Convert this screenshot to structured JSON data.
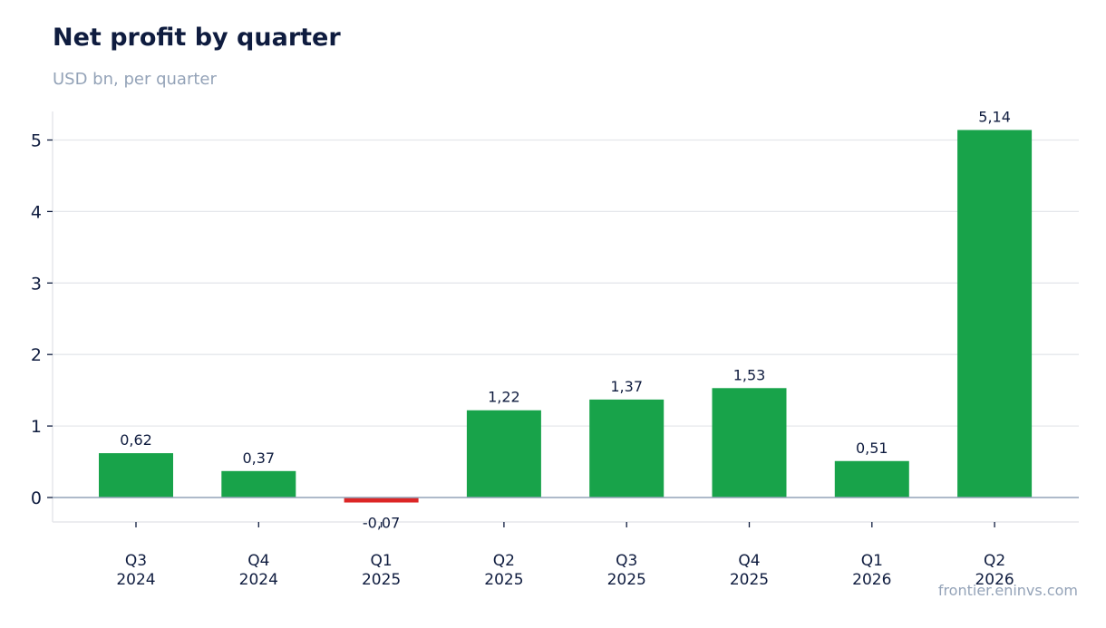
{
  "header": {
    "title": "Net profit by quarter",
    "subtitle": "USD bn, per quarter"
  },
  "footer": {
    "source": "frontier.eninvs.com"
  },
  "colors": {
    "positive": "#18a34a",
    "negative": "#dc2626",
    "grid": "#e5e7eb",
    "zero_line": "#94a3b8",
    "text": "#0f1c3f",
    "muted": "#94a3b8"
  },
  "chart_data": {
    "type": "bar",
    "title": "Net profit by quarter",
    "subtitle": "USD bn, per quarter",
    "categories": [
      [
        "Q3",
        "2024"
      ],
      [
        "Q4",
        "2024"
      ],
      [
        "Q1",
        "2025"
      ],
      [
        "Q2",
        "2025"
      ],
      [
        "Q3",
        "2025"
      ],
      [
        "Q4",
        "2025"
      ],
      [
        "Q1",
        "2026"
      ],
      [
        "Q2",
        "2026"
      ]
    ],
    "values": [
      0.62,
      0.37,
      -0.07,
      1.22,
      1.37,
      1.53,
      0.51,
      5.14
    ],
    "data_labels": [
      "0,62",
      "0,37",
      "-0,07",
      "1,22",
      "1,37",
      "1,53",
      "0,51",
      "5,14"
    ],
    "y_ticks": [
      0,
      1,
      2,
      3,
      4,
      5
    ],
    "ylim": [
      -0.35,
      5.4
    ],
    "grid": true,
    "legend": "none",
    "xlabel": "",
    "ylabel": ""
  }
}
